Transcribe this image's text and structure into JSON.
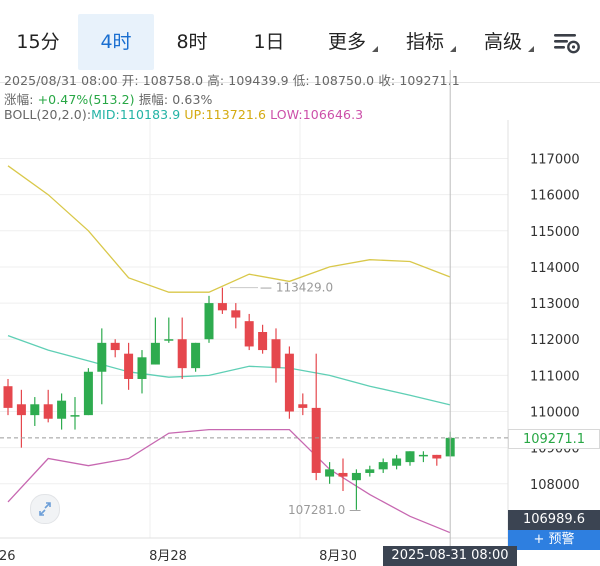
{
  "tabs": [
    {
      "label": "15分",
      "active": false
    },
    {
      "label": "4时",
      "active": true
    },
    {
      "label": "8时",
      "active": false
    },
    {
      "label": "1日",
      "active": false
    },
    {
      "label": "更多",
      "active": false,
      "dropdown": true
    },
    {
      "label": "指标",
      "active": false,
      "dropdown": true
    },
    {
      "label": "高级",
      "active": false,
      "dropdown": true
    }
  ],
  "settings_icon": "chart-settings-icon",
  "ohlc": {
    "date": "2025/08/31 08:00",
    "open_label": "开:",
    "open": "108758.0",
    "high_label": "高:",
    "high": "109439.9",
    "low_label": "低:",
    "low": "108750.0",
    "close_label": "收:",
    "close": "109271.1"
  },
  "change": {
    "label": "涨幅:",
    "value": "+0.47%(513.2)",
    "amp_label": "振幅:",
    "amp_value": "0.63%"
  },
  "boll": {
    "label": "BOLL(20,2.0):",
    "mid_label": "MID:",
    "mid": "110183.9",
    "up_label": "UP:",
    "up": "113721.6",
    "low_label": "LOW:",
    "low": "106646.3"
  },
  "colors": {
    "up": "#2eab4f",
    "down": "#e5474d",
    "mid": "#5fcfb5",
    "upper": "#d9c84a",
    "lower": "#c768b1",
    "grid": "#efefef",
    "axis_text": "#333333"
  },
  "chart_data": {
    "type": "candlestick",
    "y_ticks": [
      108000,
      109000,
      110000,
      111000,
      112000,
      113000,
      114000,
      115000,
      116000,
      117000
    ],
    "y_range": [
      106500,
      117900
    ],
    "x_labels": [
      "26",
      "8月28",
      "8月30"
    ],
    "current_price": "109271.1",
    "low_band_price": "106989.6",
    "alert_button": "+ 预警",
    "crosshair_time": "2025-08-31 08:00",
    "annotations": [
      {
        "text": "113429.0",
        "price": 113429.0
      },
      {
        "text": "107281.0",
        "price": 107281.0
      }
    ],
    "candles": [
      [
        110700,
        110900,
        109900,
        110100
      ],
      [
        110200,
        110600,
        109000,
        109900
      ],
      [
        109900,
        110400,
        109600,
        110200
      ],
      [
        110200,
        110600,
        109700,
        109800
      ],
      [
        109800,
        110500,
        109500,
        110300
      ],
      [
        109900,
        110400,
        109500,
        109900
      ],
      [
        109900,
        111200,
        109900,
        111100
      ],
      [
        111100,
        112300,
        110200,
        111900
      ],
      [
        111900,
        112000,
        111500,
        111700
      ],
      [
        111600,
        111900,
        110600,
        110900
      ],
      [
        110900,
        111700,
        110500,
        111500
      ],
      [
        111300,
        112600,
        111300,
        111900
      ],
      [
        112000,
        112600,
        111900,
        112000
      ],
      [
        112000,
        112600,
        110900,
        111200
      ],
      [
        111200,
        111900,
        111100,
        111900
      ],
      [
        112000,
        113200,
        111900,
        113000
      ],
      [
        113000,
        113429,
        112700,
        112800
      ],
      [
        112800,
        113000,
        112300,
        112600
      ],
      [
        112500,
        112700,
        111700,
        111800
      ],
      [
        112200,
        112400,
        111600,
        111700
      ],
      [
        112000,
        112300,
        110800,
        111200
      ],
      [
        111600,
        111800,
        109800,
        110000
      ],
      [
        110200,
        110500,
        109900,
        110100
      ],
      [
        110100,
        111600,
        108100,
        108300
      ],
      [
        108200,
        108600,
        108000,
        108400
      ],
      [
        108300,
        108700,
        107800,
        108200
      ],
      [
        108100,
        108400,
        107281,
        108300
      ],
      [
        108300,
        108500,
        108200,
        108400
      ],
      [
        108400,
        108700,
        108300,
        108600
      ],
      [
        108500,
        108800,
        108400,
        108700
      ],
      [
        108600,
        108900,
        108500,
        108900
      ],
      [
        108800,
        108900,
        108600,
        108800
      ],
      [
        108800,
        108800,
        108500,
        108700
      ],
      [
        108758,
        109439.9,
        108750,
        109271.1
      ]
    ],
    "mid_series": [
      [
        0,
        112100
      ],
      [
        3,
        111700
      ],
      [
        6,
        111400
      ],
      [
        9,
        111100
      ],
      [
        12,
        110950
      ],
      [
        15,
        111000
      ],
      [
        18,
        111250
      ],
      [
        21,
        111200
      ],
      [
        24,
        111000
      ],
      [
        27,
        110700
      ],
      [
        30,
        110450
      ],
      [
        33,
        110183.9
      ]
    ],
    "upper_series": [
      [
        0,
        116800
      ],
      [
        3,
        116000
      ],
      [
        6,
        115000
      ],
      [
        9,
        113700
      ],
      [
        12,
        113300
      ],
      [
        15,
        113300
      ],
      [
        18,
        113800
      ],
      [
        21,
        113600
      ],
      [
        24,
        114000
      ],
      [
        27,
        114200
      ],
      [
        30,
        114150
      ],
      [
        33,
        113721.6
      ]
    ],
    "lower_series": [
      [
        0,
        107500
      ],
      [
        3,
        108700
      ],
      [
        6,
        108500
      ],
      [
        9,
        108700
      ],
      [
        12,
        109400
      ],
      [
        15,
        109500
      ],
      [
        18,
        109500
      ],
      [
        21,
        109500
      ],
      [
        24,
        108400
      ],
      [
        27,
        107700
      ],
      [
        30,
        107100
      ],
      [
        33,
        106646.3
      ]
    ]
  }
}
